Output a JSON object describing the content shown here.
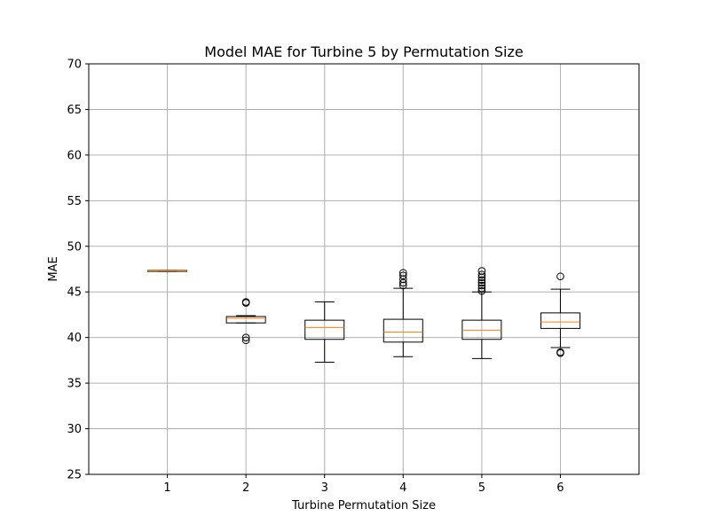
{
  "chart_data": {
    "type": "box",
    "title": "Model MAE for Turbine 5 by Permutation Size",
    "xlabel": "Turbine Permutation Size",
    "ylabel": "MAE",
    "ylim": [
      25,
      70
    ],
    "xlim": [
      0,
      7
    ],
    "yticks": [
      25,
      30,
      35,
      40,
      45,
      50,
      55,
      60,
      65,
      70
    ],
    "grid": true,
    "categories": [
      "1",
      "2",
      "3",
      "4",
      "5",
      "6"
    ],
    "boxes": [
      {
        "category": "1",
        "whislo": 47.25,
        "q1": 47.25,
        "med": 47.3,
        "q3": 47.35,
        "whishi": 47.35,
        "fliers": []
      },
      {
        "category": "2",
        "whislo": 41.6,
        "q1": 41.6,
        "med": 42.1,
        "q3": 42.3,
        "whishi": 42.4,
        "fliers": [
          39.7,
          40.0,
          43.8,
          43.9
        ]
      },
      {
        "category": "3",
        "whislo": 37.3,
        "q1": 39.8,
        "med": 41.1,
        "q3": 41.9,
        "whishi": 43.9,
        "fliers": []
      },
      {
        "category": "4",
        "whislo": 37.9,
        "q1": 39.5,
        "med": 40.6,
        "q3": 42.0,
        "whishi": 45.4,
        "fliers": [
          45.7,
          46.0,
          46.4,
          46.8,
          47.1
        ]
      },
      {
        "category": "5",
        "whislo": 37.7,
        "q1": 39.8,
        "med": 40.8,
        "q3": 41.9,
        "whishi": 45.0,
        "fliers": [
          45.1,
          45.4,
          45.7,
          46.0,
          46.3,
          46.6,
          46.9,
          47.3
        ]
      },
      {
        "category": "6",
        "whislo": 38.9,
        "q1": 41.0,
        "med": 41.7,
        "q3": 42.7,
        "whishi": 45.3,
        "fliers": [
          38.3,
          38.4,
          46.7
        ]
      }
    ],
    "colors": {
      "box": "#000000",
      "median": "#ff7f0e",
      "grid": "#b0b0b0",
      "background": "#ffffff"
    }
  }
}
